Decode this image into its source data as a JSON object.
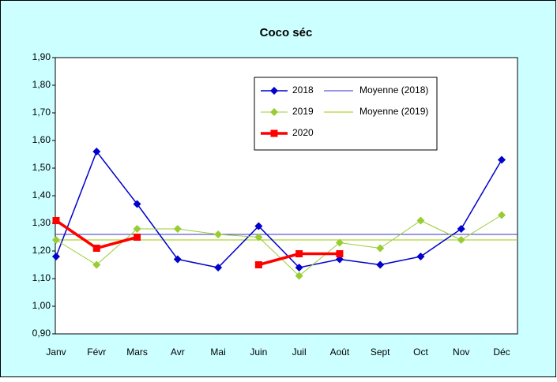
{
  "chart_data": {
    "type": "line",
    "title": "Coco séc",
    "categories": [
      "Janv",
      "Févr",
      "Mars",
      "Avr",
      "Mai",
      "Juin",
      "Juil",
      "Août",
      "Sept",
      "Oct",
      "Nov",
      "Déc"
    ],
    "series": [
      {
        "name": "2018",
        "color": "#0000cc",
        "marker": "diamond",
        "values": [
          1.18,
          1.56,
          1.37,
          1.17,
          1.14,
          1.29,
          1.14,
          1.17,
          1.15,
          1.18,
          1.28,
          1.53
        ]
      },
      {
        "name": "2019",
        "color": "#99cc33",
        "marker": "diamond",
        "values": [
          1.24,
          1.15,
          1.28,
          1.28,
          1.26,
          1.25,
          1.11,
          1.23,
          1.21,
          1.31,
          1.24,
          1.33
        ]
      },
      {
        "name": "2020",
        "color": "#ff0000",
        "marker": "square",
        "values": [
          1.31,
          1.21,
          1.25,
          null,
          null,
          1.15,
          1.19,
          1.19,
          null,
          null,
          null,
          null
        ]
      }
    ],
    "mean_lines": [
      {
        "name": "Moyenne (2018)",
        "color": "#3333cc",
        "value": 1.26
      },
      {
        "name": "Moyenne (2019)",
        "color": "#99cc00",
        "value": 1.24
      }
    ],
    "ylim": [
      0.9,
      1.9
    ],
    "yticks": [
      {
        "value": 0.9,
        "label": "0,90"
      },
      {
        "value": 1.0,
        "label": "1,00"
      },
      {
        "value": 1.1,
        "label": "1,10"
      },
      {
        "value": 1.2,
        "label": "1,20"
      },
      {
        "value": 1.3,
        "label": "1,30"
      },
      {
        "value": 1.4,
        "label": "1,40"
      },
      {
        "value": 1.5,
        "label": "1,50"
      },
      {
        "value": 1.6,
        "label": "1,60"
      },
      {
        "value": 1.7,
        "label": "1,70"
      },
      {
        "value": 1.8,
        "label": "1,80"
      },
      {
        "value": 1.9,
        "label": "1,90"
      }
    ],
    "grid": false
  }
}
